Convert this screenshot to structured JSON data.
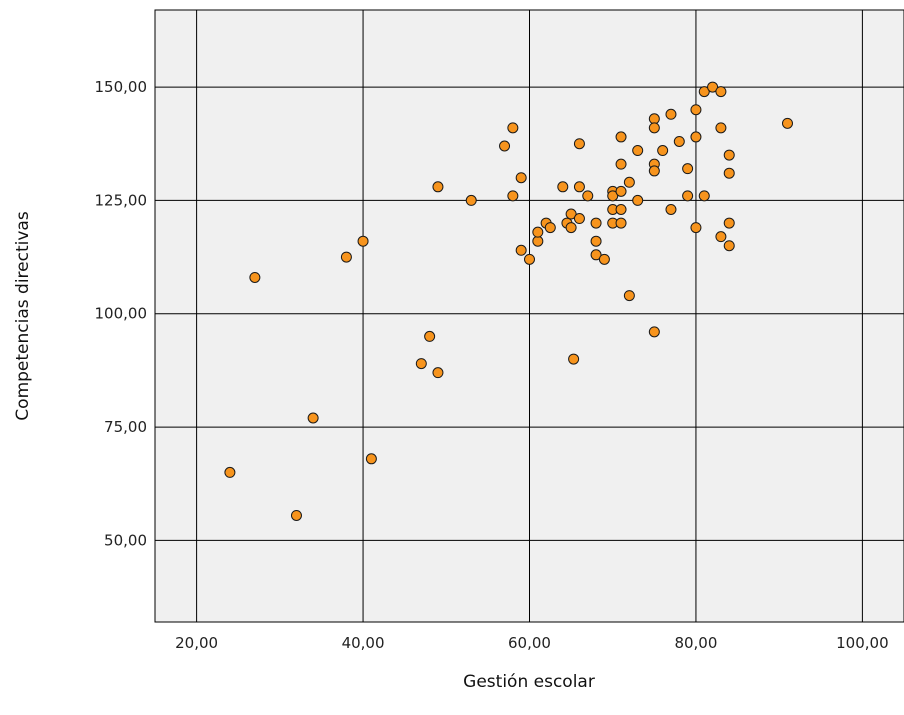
{
  "chart_data": {
    "type": "scatter",
    "xlabel": "Gestión escolar",
    "ylabel": "Competencias directivas",
    "xlim": [
      15,
      105
    ],
    "ylim": [
      32,
      167
    ],
    "x_ticks": [
      20,
      40,
      60,
      80,
      100
    ],
    "x_tick_labels": [
      "20,00",
      "40,00",
      "60,00",
      "80,00",
      "100,00"
    ],
    "y_ticks": [
      50,
      75,
      100,
      125,
      150
    ],
    "y_tick_labels": [
      "50,00",
      "75,00",
      "100,00",
      "125,00",
      "150,00"
    ],
    "grid": true,
    "colors": {
      "plot_bg": "#f0f0f0",
      "point_fill": "#f7941d",
      "point_stroke": "#1a1a1a",
      "grid": "#000000"
    },
    "points": [
      [
        24,
        65
      ],
      [
        27,
        108
      ],
      [
        32,
        55.5
      ],
      [
        34,
        77
      ],
      [
        38,
        112.5
      ],
      [
        40,
        116
      ],
      [
        41,
        68
      ],
      [
        47,
        89
      ],
      [
        48,
        95
      ],
      [
        49,
        87
      ],
      [
        49,
        128
      ],
      [
        53,
        125
      ],
      [
        57,
        137
      ],
      [
        58,
        141
      ],
      [
        58,
        126
      ],
      [
        59,
        130
      ],
      [
        59,
        114
      ],
      [
        60,
        112
      ],
      [
        61,
        116
      ],
      [
        61,
        118
      ],
      [
        62,
        120
      ],
      [
        62.5,
        119
      ],
      [
        64,
        128
      ],
      [
        64.5,
        120
      ],
      [
        65,
        122
      ],
      [
        65,
        119
      ],
      [
        65.3,
        90
      ],
      [
        66,
        137.5
      ],
      [
        66,
        128
      ],
      [
        66,
        121
      ],
      [
        67,
        126
      ],
      [
        68,
        120
      ],
      [
        68,
        116
      ],
      [
        68,
        113
      ],
      [
        69,
        112
      ],
      [
        70,
        127
      ],
      [
        70,
        126
      ],
      [
        70,
        123
      ],
      [
        70,
        120
      ],
      [
        71,
        139
      ],
      [
        71,
        133
      ],
      [
        71,
        127
      ],
      [
        71,
        123
      ],
      [
        71,
        120
      ],
      [
        72,
        129
      ],
      [
        72,
        104
      ],
      [
        73,
        136
      ],
      [
        73,
        125
      ],
      [
        75,
        143
      ],
      [
        75,
        141
      ],
      [
        75,
        133
      ],
      [
        75,
        131.5
      ],
      [
        75,
        96
      ],
      [
        76,
        136
      ],
      [
        77,
        144
      ],
      [
        77,
        123
      ],
      [
        78,
        138
      ],
      [
        79,
        132
      ],
      [
        79,
        126
      ],
      [
        80,
        145
      ],
      [
        80,
        139
      ],
      [
        80,
        119
      ],
      [
        81,
        149
      ],
      [
        81,
        126
      ],
      [
        82,
        150
      ],
      [
        83,
        149
      ],
      [
        83,
        141
      ],
      [
        83,
        117
      ],
      [
        84,
        135
      ],
      [
        84,
        131
      ],
      [
        84,
        120
      ],
      [
        84,
        115
      ],
      [
        91,
        142
      ]
    ]
  }
}
